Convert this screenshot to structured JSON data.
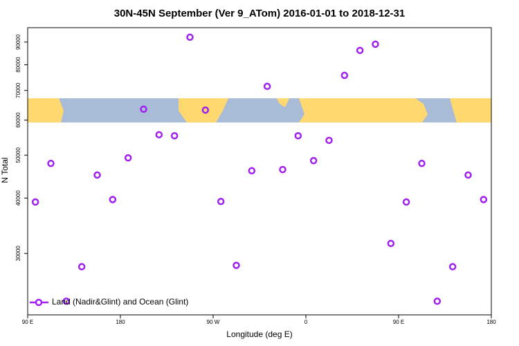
{
  "chart_data": {
    "type": "scatter",
    "title": "30N-45N September (Ver 9_ATom)   2016-01-01 to 2018-12-31",
    "x_label": "Longitude (deg E)",
    "y_label": "N Total",
    "series": [
      {
        "name": "Land (Nadir&Glint) and Ocean (Glint)",
        "color": "#a020f0",
        "x": [
          97.5,
          112.5,
          127.5,
          142.5,
          157.5,
          172.5,
          187.5,
          202.5,
          217.5,
          232.5,
          247.5,
          262.5,
          277.5,
          292.5,
          307.5,
          322.5,
          337.5,
          352.5,
          367.5,
          382.5,
          397.5,
          412.5,
          427.5,
          442.5,
          457.5,
          472.5,
          487.5,
          502.5,
          517.5,
          532.5
        ],
        "values": [
          39200,
          47900,
          23400,
          28000,
          45100,
          39700,
          49300,
          63500,
          55600,
          55300,
          92300,
          63200,
          39300,
          28200,
          46100,
          71500,
          46400,
          55300,
          48600,
          54000,
          75700,
          86200,
          89000,
          31600,
          39200,
          47900,
          23400,
          28000,
          45100,
          39700
        ]
      }
    ],
    "xlim": [
      90,
      540
    ],
    "xticks": [
      {
        "value": 90,
        "label": "90 E"
      },
      180,
      {
        "value": 270,
        "label": "90 W"
      },
      {
        "value": 360,
        "label": "0"
      },
      {
        "value": 450,
        "label": "90 E"
      },
      {
        "value": 540,
        "label": "180"
      }
    ],
    "ylim": [
      21800,
      97000
    ],
    "yticks": [
      30000,
      40000,
      50000,
      60000,
      70000,
      80000,
      90000
    ],
    "log_y": true,
    "legend": "bottom-left"
  }
}
